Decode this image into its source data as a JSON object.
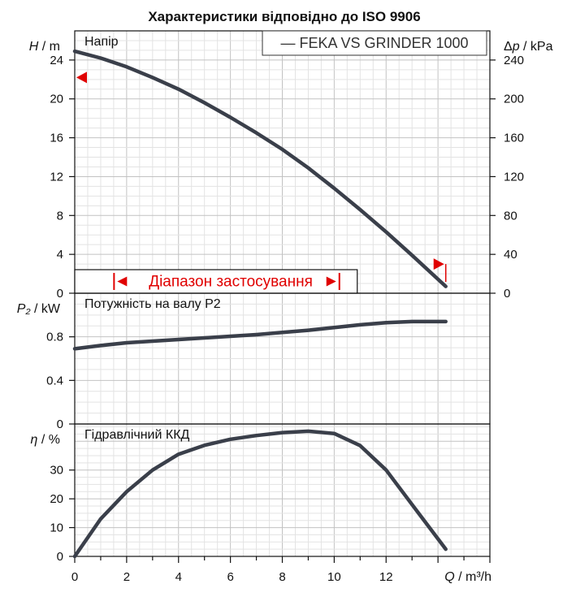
{
  "chart_data": {
    "type": "line",
    "title": "Характеристики відповідно до ISO 9906",
    "legend": {
      "entry": "— FEKA VS GRINDER 1000",
      "placement": "top-right"
    },
    "x_axis": {
      "symbol": "Q",
      "unit_label": " / m³/h",
      "range": [
        0,
        16
      ],
      "ticks": [
        0,
        2,
        4,
        6,
        8,
        10,
        12
      ],
      "tick_labels": [
        "0",
        "2",
        "4",
        "6",
        "8",
        "10",
        "12"
      ]
    },
    "panels": [
      {
        "id": "head",
        "title": "Напір",
        "y_symbol": "H",
        "y_unit": " / m",
        "ylim": [
          0,
          27
        ],
        "y_ticks": [
          0,
          4,
          8,
          12,
          16,
          20,
          24
        ],
        "y_tick_labels": [
          "0",
          "4",
          "8",
          "12",
          "16",
          "20",
          "24"
        ],
        "secondary_axis": {
          "symbol": "Δp",
          "unit": " / kPa",
          "factor": 10,
          "ticks": [
            0,
            40,
            80,
            120,
            160,
            200,
            240
          ],
          "tick_labels": [
            "0",
            "40",
            "80",
            "120",
            "160",
            "200",
            "240"
          ]
        },
        "series": [
          {
            "x": [
              0,
              1,
              2,
              3,
              4,
              5,
              6,
              7,
              8,
              9,
              10,
              11,
              12,
              13,
              14.3
            ],
            "y": [
              24.9,
              24.2,
              23.3,
              22.2,
              21.0,
              19.6,
              18.1,
              16.5,
              14.8,
              12.9,
              10.8,
              8.6,
              6.3,
              3.9,
              0.7
            ]
          }
        ],
        "range_of_application": {
          "label": "Діапазон застосування",
          "x_from": 0.7,
          "x_to": 10.2
        },
        "markers": [
          {
            "side": "left",
            "x": 0,
            "y": 22.2
          },
          {
            "side": "right",
            "x": 14.3,
            "y": 3.0
          }
        ]
      },
      {
        "id": "power",
        "title": "Потужність на валу P2",
        "y_symbol": "P₂",
        "y_unit": " / kW",
        "ylim": [
          0,
          1.2
        ],
        "y_ticks": [
          0,
          0.4,
          0.8
        ],
        "y_tick_labels": [
          "0",
          "0.4",
          "0.8"
        ],
        "series": [
          {
            "x": [
              0,
              1,
              2,
              3,
              4,
              5,
              6,
              7,
              8,
              9,
              10,
              11,
              12,
              13,
              14.3
            ],
            "y": [
              0.69,
              0.72,
              0.745,
              0.76,
              0.775,
              0.79,
              0.805,
              0.82,
              0.84,
              0.86,
              0.885,
              0.91,
              0.93,
              0.94,
              0.94
            ]
          }
        ]
      },
      {
        "id": "efficiency",
        "title": "Гідравлічний ККД",
        "y_symbol": "η",
        "y_unit": " / %",
        "ylim": [
          0,
          46
        ],
        "y_ticks": [
          0,
          10,
          20,
          30
        ],
        "y_tick_labels": [
          "0",
          "10",
          "20",
          "30"
        ],
        "series": [
          {
            "x": [
              0,
              1,
              2,
              3,
              4,
              5,
              6,
              7,
              8,
              9,
              10,
              11,
              12,
              13,
              14.3
            ],
            "y": [
              0,
              13,
              22.5,
              30,
              35.5,
              38.6,
              40.7,
              42.0,
              43.0,
              43.5,
              42.7,
              38.5,
              30.0,
              18.0,
              2.5
            ]
          }
        ]
      }
    ]
  }
}
